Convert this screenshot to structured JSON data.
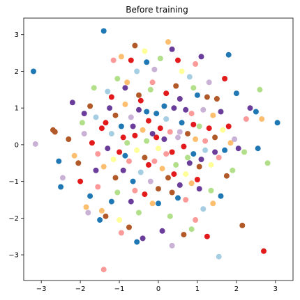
{
  "chart_data": {
    "type": "scatter",
    "title": "Before training",
    "xlabel": "",
    "ylabel": "",
    "xlim": [
      -3.45,
      3.45
    ],
    "ylim": [
      -3.7,
      3.45
    ],
    "x_ticks": [
      -3,
      -2,
      -1,
      0,
      1,
      2,
      3
    ],
    "x_tick_labels": [
      "−3",
      "−2",
      "−1",
      "0",
      "1",
      "2",
      "3"
    ],
    "y_ticks": [
      -3,
      -2,
      -1,
      0,
      1,
      2,
      3
    ],
    "y_tick_labels": [
      "−3",
      "−2",
      "−1",
      "0",
      "1",
      "2",
      "3"
    ],
    "grid": false,
    "legend": "none",
    "palette": [
      "#a6cee3",
      "#1f78b4",
      "#b2df8a",
      "#fb9a99",
      "#e31a1c",
      "#fdbf6f",
      "#b15928",
      "#cab2d6",
      "#6a3d9a",
      "#ffff99"
    ],
    "points": [
      [
        -3.2,
        2.0,
        1
      ],
      [
        -3.15,
        0.02,
        7
      ],
      [
        -2.7,
        0.4,
        6
      ],
      [
        -2.65,
        0.35,
        6
      ],
      [
        -2.55,
        -0.45,
        1
      ],
      [
        -2.5,
        -1.15,
        1
      ],
      [
        -2.45,
        -0.9,
        7
      ],
      [
        -2.2,
        1.15,
        8
      ],
      [
        -2.15,
        -0.3,
        5
      ],
      [
        -2.05,
        -0.5,
        6
      ],
      [
        -1.95,
        0.6,
        2
      ],
      [
        -1.9,
        0.85,
        8
      ],
      [
        -1.85,
        -1.7,
        5
      ],
      [
        -1.8,
        -1.85,
        7
      ],
      [
        -1.75,
        -1.4,
        1
      ],
      [
        -1.7,
        0.05,
        4
      ],
      [
        -1.65,
        1.55,
        2
      ],
      [
        -1.6,
        -0.7,
        8
      ],
      [
        -1.55,
        -1.15,
        3
      ],
      [
        -1.5,
        -2.05,
        1
      ],
      [
        -1.45,
        0.45,
        4
      ],
      [
        -1.45,
        -1.8,
        5
      ],
      [
        -1.4,
        3.1,
        1
      ],
      [
        -1.4,
        -3.4,
        3
      ],
      [
        -1.35,
        -1.95,
        6
      ],
      [
        -1.3,
        1.45,
        0
      ],
      [
        -1.25,
        1.0,
        8
      ],
      [
        -1.2,
        -1.55,
        1
      ],
      [
        -1.15,
        2.3,
        3
      ],
      [
        -1.1,
        -0.9,
        6
      ],
      [
        -1.05,
        1.8,
        2
      ],
      [
        -1.0,
        -2.05,
        9
      ],
      [
        -0.95,
        2.4,
        5
      ],
      [
        -0.9,
        0.2,
        4
      ],
      [
        -0.85,
        -0.3,
        1
      ],
      [
        -0.8,
        1.7,
        5
      ],
      [
        -0.75,
        -2.25,
        6
      ],
      [
        -0.7,
        2.3,
        4
      ],
      [
        -0.65,
        0.5,
        8
      ],
      [
        -0.6,
        -1.25,
        3
      ],
      [
        -0.55,
        2.0,
        0
      ],
      [
        -0.5,
        -1.85,
        2
      ],
      [
        -0.45,
        1.2,
        4
      ],
      [
        -0.4,
        -2.55,
        8
      ],
      [
        -0.35,
        2.55,
        9
      ],
      [
        -0.3,
        0.9,
        1
      ],
      [
        -0.25,
        -0.55,
        4
      ],
      [
        -0.2,
        1.5,
        2
      ],
      [
        -0.15,
        -1.6,
        5
      ],
      [
        -0.1,
        2.05,
        7
      ],
      [
        -0.05,
        0.2,
        4
      ],
      [
        0.0,
        -1.2,
        6
      ],
      [
        0.05,
        2.35,
        2
      ],
      [
        0.1,
        -2.35,
        8
      ],
      [
        0.15,
        1.05,
        1
      ],
      [
        0.2,
        -0.25,
        3
      ],
      [
        0.25,
        2.8,
        5
      ],
      [
        0.3,
        -1.95,
        2
      ],
      [
        0.35,
        2.6,
        8
      ],
      [
        0.4,
        -0.8,
        4
      ],
      [
        0.45,
        1.6,
        6
      ],
      [
        0.5,
        -1.45,
        1
      ],
      [
        0.55,
        0.35,
        7
      ],
      [
        0.6,
        2.0,
        9
      ],
      [
        0.65,
        -2.45,
        6
      ],
      [
        0.7,
        0.95,
        8
      ],
      [
        0.75,
        -0.35,
        2
      ],
      [
        0.8,
        1.85,
        0
      ],
      [
        0.85,
        -1.05,
        5
      ],
      [
        0.9,
        0.55,
        4
      ],
      [
        0.95,
        -2.05,
        3
      ],
      [
        1.0,
        1.35,
        1
      ],
      [
        1.05,
        -0.6,
        6
      ],
      [
        1.1,
        2.4,
        8
      ],
      [
        1.15,
        -1.75,
        0
      ],
      [
        1.2,
        0.1,
        3
      ],
      [
        1.25,
        -2.5,
        4
      ],
      [
        1.3,
        1.7,
        7
      ],
      [
        1.35,
        -1.25,
        2
      ],
      [
        1.4,
        0.8,
        5
      ],
      [
        1.45,
        -0.2,
        8
      ],
      [
        1.5,
        1.25,
        6
      ],
      [
        1.55,
        -3.05,
        0
      ],
      [
        1.6,
        -1.4,
        1
      ],
      [
        1.65,
        0.4,
        9
      ],
      [
        1.7,
        1.8,
        4
      ],
      [
        1.75,
        -0.85,
        6
      ],
      [
        1.8,
        2.45,
        1
      ],
      [
        1.85,
        0.05,
        5
      ],
      [
        1.9,
        -0.7,
        2
      ],
      [
        2.0,
        1.4,
        1
      ],
      [
        2.05,
        -0.1,
        8
      ],
      [
        2.15,
        -2.2,
        6
      ],
      [
        2.2,
        -0.2,
        2
      ],
      [
        2.25,
        0.7,
        3
      ],
      [
        2.35,
        1.0,
        8
      ],
      [
        2.5,
        0.9,
        1
      ],
      [
        2.55,
        -0.1,
        1
      ],
      [
        2.6,
        1.5,
        2
      ],
      [
        2.65,
        0.7,
        5
      ],
      [
        2.7,
        -2.9,
        4
      ],
      [
        2.8,
        -0.5,
        2
      ],
      [
        3.05,
        0.6,
        1
      ],
      [
        -2.3,
        0.15,
        6
      ],
      [
        -2.0,
        -1.0,
        4
      ],
      [
        -1.9,
        0.3,
        7
      ],
      [
        -1.75,
        1.05,
        6
      ],
      [
        -1.6,
        0.75,
        0
      ],
      [
        -1.55,
        -0.25,
        3
      ],
      [
        -1.4,
        -0.6,
        5
      ],
      [
        -1.35,
        0.6,
        4
      ],
      [
        -1.3,
        -0.1,
        8
      ],
      [
        -1.2,
        0.3,
        0
      ],
      [
        -1.15,
        -0.4,
        9
      ],
      [
        -1.1,
        0.8,
        6
      ],
      [
        -1.0,
        -0.2,
        4
      ],
      [
        -0.95,
        0.5,
        1
      ],
      [
        -0.9,
        -0.7,
        8
      ],
      [
        -0.85,
        1.1,
        5
      ],
      [
        -0.8,
        0.05,
        2
      ],
      [
        -0.75,
        -0.45,
        3
      ],
      [
        -0.7,
        0.75,
        7
      ],
      [
        -0.65,
        -1.0,
        1
      ],
      [
        -0.6,
        0.25,
        4
      ],
      [
        -0.55,
        -0.15,
        9
      ],
      [
        -0.5,
        0.95,
        8
      ],
      [
        -0.45,
        -0.75,
        0
      ],
      [
        -0.4,
        0.4,
        5
      ],
      [
        -0.35,
        -0.35,
        6
      ],
      [
        -0.3,
        0.1,
        2
      ],
      [
        -0.25,
        0.65,
        4
      ],
      [
        -0.2,
        -1.0,
        7
      ],
      [
        -0.15,
        0.3,
        8
      ],
      [
        -0.1,
        -0.45,
        3
      ],
      [
        -0.05,
        0.85,
        1
      ],
      [
        0.0,
        -0.1,
        9
      ],
      [
        0.05,
        0.45,
        4
      ],
      [
        0.1,
        -0.65,
        5
      ],
      [
        0.15,
        0.15,
        8
      ],
      [
        0.2,
        0.7,
        0
      ],
      [
        0.25,
        -0.9,
        6
      ],
      [
        0.3,
        0.35,
        3
      ],
      [
        0.35,
        -0.2,
        4
      ],
      [
        0.4,
        1.0,
        8
      ],
      [
        0.45,
        -0.55,
        2
      ],
      [
        0.5,
        0.2,
        7
      ],
      [
        0.55,
        -1.1,
        8
      ],
      [
        0.6,
        0.6,
        1
      ],
      [
        0.65,
        -0.05,
        4
      ],
      [
        0.7,
        -0.8,
        9
      ],
      [
        0.75,
        0.3,
        6
      ],
      [
        0.8,
        -0.5,
        8
      ],
      [
        0.85,
        0.85,
        3
      ],
      [
        0.9,
        -0.25,
        1
      ],
      [
        0.95,
        0.15,
        5
      ],
      [
        1.0,
        -0.95,
        4
      ],
      [
        1.05,
        0.5,
        2
      ],
      [
        1.1,
        -0.4,
        8
      ],
      [
        1.15,
        0.95,
        7
      ],
      [
        1.2,
        -0.15,
        0
      ],
      [
        1.3,
        0.45,
        4
      ],
      [
        1.35,
        -0.55,
        9
      ],
      [
        1.45,
        0.2,
        6
      ],
      [
        1.55,
        -0.35,
        3
      ],
      [
        1.6,
        0.9,
        8
      ],
      [
        1.7,
        -0.15,
        1
      ],
      [
        1.8,
        0.5,
        4
      ],
      [
        1.95,
        0.15,
        7
      ],
      [
        -1.05,
        -1.3,
        2
      ],
      [
        -0.7,
        -1.55,
        8
      ],
      [
        -0.35,
        -1.35,
        4
      ],
      [
        0.0,
        -1.6,
        1
      ],
      [
        0.35,
        -1.3,
        6
      ],
      [
        0.7,
        -1.5,
        3
      ],
      [
        1.05,
        -1.2,
        8
      ],
      [
        1.4,
        -1.6,
        5
      ],
      [
        -1.2,
        1.3,
        4
      ],
      [
        -0.85,
        1.55,
        8
      ],
      [
        -0.5,
        1.35,
        6
      ],
      [
        -0.15,
        1.7,
        3
      ],
      [
        0.2,
        1.4,
        4
      ],
      [
        0.55,
        1.25,
        8
      ],
      [
        0.9,
        1.55,
        2
      ],
      [
        1.25,
        1.3,
        6
      ],
      [
        -0.95,
        -2.4,
        3
      ],
      [
        -0.55,
        -2.65,
        1
      ],
      [
        0.35,
        -2.75,
        7
      ],
      [
        0.85,
        -2.3,
        2
      ],
      [
        -0.3,
        2.25,
        1
      ],
      [
        0.5,
        2.3,
        4
      ],
      [
        0.95,
        2.2,
        3
      ],
      [
        -0.6,
        2.7,
        6
      ]
    ]
  }
}
